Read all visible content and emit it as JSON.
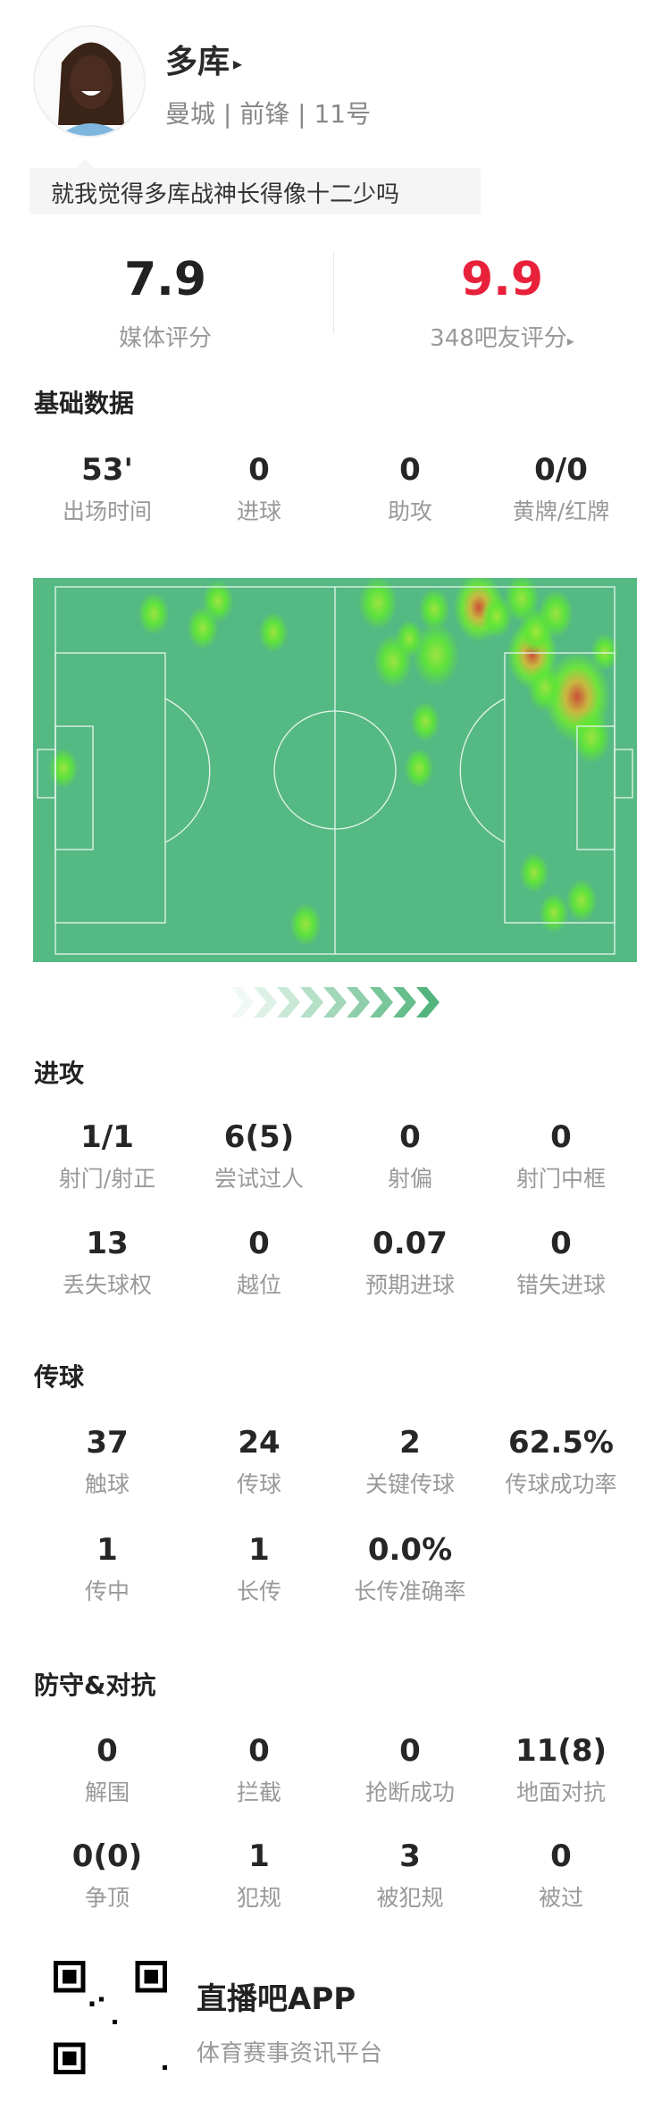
{
  "player": {
    "name": "多库",
    "name_arrow": "▸",
    "subtitle": "曼城 | 前锋 | 11号",
    "comment": "就我觉得多库战神长得像十二少吗"
  },
  "ratings": {
    "media_value": "7.9",
    "media_label": "媒体评分",
    "fan_value": "9.9",
    "fan_label": "348吧友评分",
    "fan_arrow": "▸",
    "fan_color": "#e8213a"
  },
  "basic": {
    "title": "基础数据",
    "stats": [
      {
        "v": "53'",
        "l": "出场时间"
      },
      {
        "v": "0",
        "l": "进球"
      },
      {
        "v": "0",
        "l": "助攻"
      },
      {
        "v": "0/0",
        "l": "黄牌/红牌"
      }
    ]
  },
  "heatmap": {
    "pitch_color": "#55b983",
    "line_color": "#e6f5ec"
  },
  "attack": {
    "title": "进攻",
    "stats": [
      {
        "v": "1/1",
        "l": "射门/射正"
      },
      {
        "v": "6(5)",
        "l": "尝试过人"
      },
      {
        "v": "0",
        "l": "射偏"
      },
      {
        "v": "0",
        "l": "射门中框"
      },
      {
        "v": "13",
        "l": "丢失球权"
      },
      {
        "v": "0",
        "l": "越位"
      },
      {
        "v": "0.07",
        "l": "预期进球"
      },
      {
        "v": "0",
        "l": "错失进球"
      }
    ]
  },
  "passing": {
    "title": "传球",
    "stats": [
      {
        "v": "37",
        "l": "触球"
      },
      {
        "v": "24",
        "l": "传球"
      },
      {
        "v": "2",
        "l": "关键传球"
      },
      {
        "v": "62.5%",
        "l": "传球成功率"
      },
      {
        "v": "1",
        "l": "传中"
      },
      {
        "v": "1",
        "l": "长传"
      },
      {
        "v": "0.0%",
        "l": "长传准确率"
      }
    ]
  },
  "defense": {
    "title": "防守&对抗",
    "stats": [
      {
        "v": "0",
        "l": "解围"
      },
      {
        "v": "0",
        "l": "拦截"
      },
      {
        "v": "0",
        "l": "抢断成功"
      },
      {
        "v": "11(8)",
        "l": "地面对抗"
      },
      {
        "v": "0(0)",
        "l": "争顶"
      },
      {
        "v": "1",
        "l": "犯规"
      },
      {
        "v": "3",
        "l": "被犯规"
      },
      {
        "v": "0",
        "l": "被过"
      }
    ]
  },
  "footer": {
    "app_name": "直播吧APP",
    "slogan": "体育赛事资讯平台",
    "qr_icon": "qr-code-icon"
  }
}
